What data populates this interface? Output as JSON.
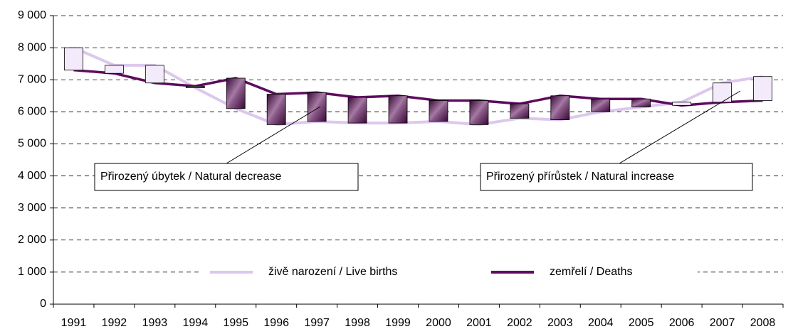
{
  "chart_data": {
    "type": "line",
    "categories": [
      "1991",
      "1992",
      "1993",
      "1994",
      "1995",
      "1996",
      "1997",
      "1998",
      "1999",
      "2000",
      "2001",
      "2002",
      "2003",
      "2004",
      "2005",
      "2006",
      "2007",
      "2008"
    ],
    "series": [
      {
        "name": "živě narození / Live births",
        "color": "#dcc8ee",
        "values": [
          8000,
          7450,
          7450,
          6750,
          6100,
          5600,
          5700,
          5650,
          5650,
          5700,
          5600,
          5800,
          5750,
          6000,
          6150,
          6300,
          6900,
          7100
        ]
      },
      {
        "name": "zemřelí / Deaths",
        "color": "#5e0b5e",
        "values": [
          7300,
          7200,
          6900,
          6800,
          7050,
          6550,
          6600,
          6450,
          6500,
          6350,
          6350,
          6250,
          6500,
          6400,
          6400,
          6200,
          6300,
          6350
        ]
      }
    ],
    "ylim": [
      0,
      9000
    ],
    "yticks": [
      {
        "value": 0,
        "label": "0"
      },
      {
        "value": 1000,
        "label": "1 000"
      },
      {
        "value": 2000,
        "label": "2 000"
      },
      {
        "value": 3000,
        "label": "3 000"
      },
      {
        "value": 4000,
        "label": "4 000"
      },
      {
        "value": 5000,
        "label": "5 000"
      },
      {
        "value": 6000,
        "label": "6 000"
      },
      {
        "value": 7000,
        "label": "7 000"
      },
      {
        "value": 8000,
        "label": "8 000"
      },
      {
        "value": 9000,
        "label": "9 000"
      }
    ],
    "grid": true,
    "annotations": [
      "Přirozený úbytek /  Natural decrease",
      "Přirozený přírůstek / Natural increase"
    ]
  }
}
